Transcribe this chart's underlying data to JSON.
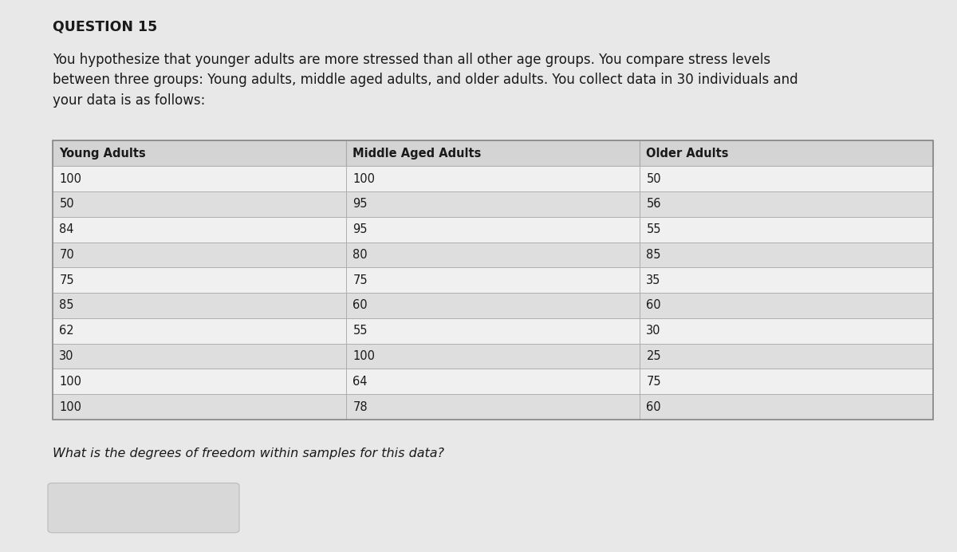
{
  "question_label": "QUESTION 15",
  "question_text": "You hypothesize that younger adults are more stressed than all other age groups. You compare stress levels\nbetween three groups: Young adults, middle aged adults, and older adults. You collect data in 30 individuals and\nyour data is as follows:",
  "col_headers": [
    "Young Adults",
    "Middle Aged Adults",
    "Older Adults"
  ],
  "col1": [
    100,
    50,
    84,
    70,
    75,
    85,
    62,
    30,
    100,
    100
  ],
  "col2": [
    100,
    95,
    95,
    80,
    75,
    60,
    55,
    100,
    64,
    78
  ],
  "col3": [
    50,
    56,
    55,
    85,
    35,
    60,
    30,
    25,
    75,
    60
  ],
  "footer_question": "What is the degrees of freedom within samples for this data?",
  "bg_color": "#e8e8e8",
  "table_row_light": "#f0f0f0",
  "table_row_dark": "#dedede",
  "header_bg": "#d4d4d4",
  "table_border": "#aaaaaa",
  "answer_box_fill": "#d8d8d8",
  "answer_box_border": "#bbbbbb",
  "text_color": "#1a1a1a",
  "header_text_color": "#1a1a1a"
}
